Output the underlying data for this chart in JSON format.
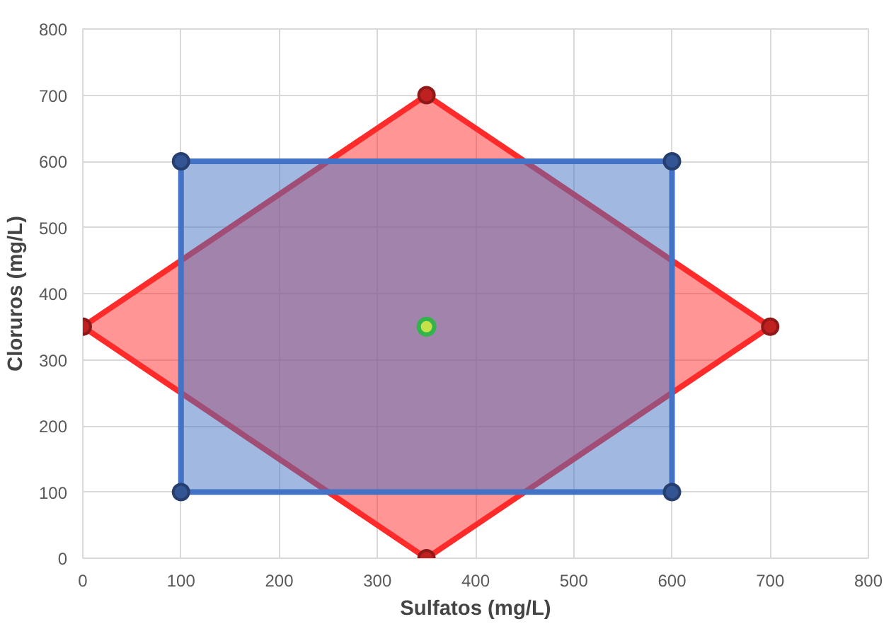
{
  "chart_data": {
    "type": "area",
    "xlabel": "Sulfatos (mg/L)",
    "ylabel": "Cloruros (mg/L)",
    "xlim": [
      0,
      800
    ],
    "ylim": [
      0,
      800
    ],
    "xticks": [
      0,
      100,
      200,
      300,
      400,
      500,
      600,
      700,
      800
    ],
    "yticks": [
      0,
      100,
      200,
      300,
      400,
      500,
      600,
      700,
      800
    ],
    "grid": true,
    "marker": "circle",
    "series": [
      {
        "color": "#ff2b2b",
        "x": [
          0,
          350,
          700,
          350
        ],
        "values": [
          350,
          700,
          350,
          0
        ]
      },
      {
        "color": "#4472c4",
        "x": [
          100,
          600,
          600,
          100
        ],
        "values": [
          600,
          600,
          100,
          100
        ]
      },
      {
        "type": "scatter",
        "color": "#33b44a",
        "x": [
          350
        ],
        "values": [
          350
        ]
      }
    ]
  }
}
